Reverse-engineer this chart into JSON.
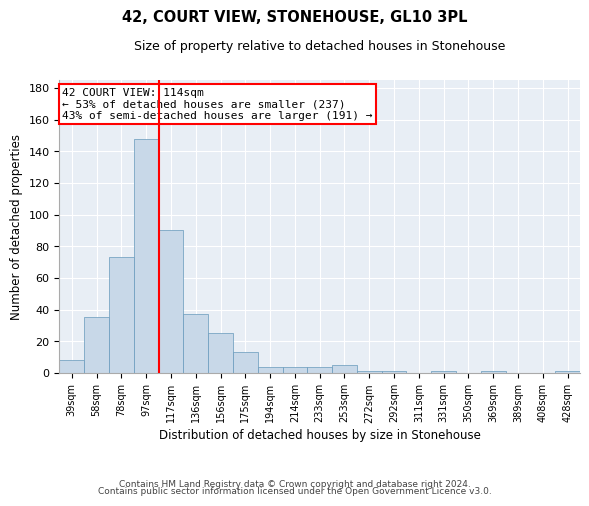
{
  "title": "42, COURT VIEW, STONEHOUSE, GL10 3PL",
  "subtitle": "Size of property relative to detached houses in Stonehouse",
  "xlabel": "Distribution of detached houses by size in Stonehouse",
  "ylabel": "Number of detached properties",
  "bar_color": "#c8d8e8",
  "bar_edge_color": "#6699bb",
  "background_color": "#e8eef5",
  "grid_color": "#ffffff",
  "categories": [
    "39sqm",
    "58sqm",
    "78sqm",
    "97sqm",
    "117sqm",
    "136sqm",
    "156sqm",
    "175sqm",
    "194sqm",
    "214sqm",
    "233sqm",
    "253sqm",
    "272sqm",
    "292sqm",
    "311sqm",
    "331sqm",
    "350sqm",
    "369sqm",
    "389sqm",
    "408sqm",
    "428sqm"
  ],
  "values": [
    8,
    35,
    73,
    148,
    90,
    37,
    25,
    13,
    4,
    4,
    4,
    5,
    1,
    1,
    0,
    1,
    0,
    1,
    0,
    0,
    1
  ],
  "ylim": [
    0,
    185
  ],
  "yticks": [
    0,
    20,
    40,
    60,
    80,
    100,
    120,
    140,
    160,
    180
  ],
  "property_label": "42 COURT VIEW: 114sqm",
  "annotation_line1": "← 53% of detached houses are smaller (237)",
  "annotation_line2": "43% of semi-detached houses are larger (191) →",
  "vline_x": 3.5,
  "footnote1": "Contains HM Land Registry data © Crown copyright and database right 2024.",
  "footnote2": "Contains public sector information licensed under the Open Government Licence v3.0."
}
